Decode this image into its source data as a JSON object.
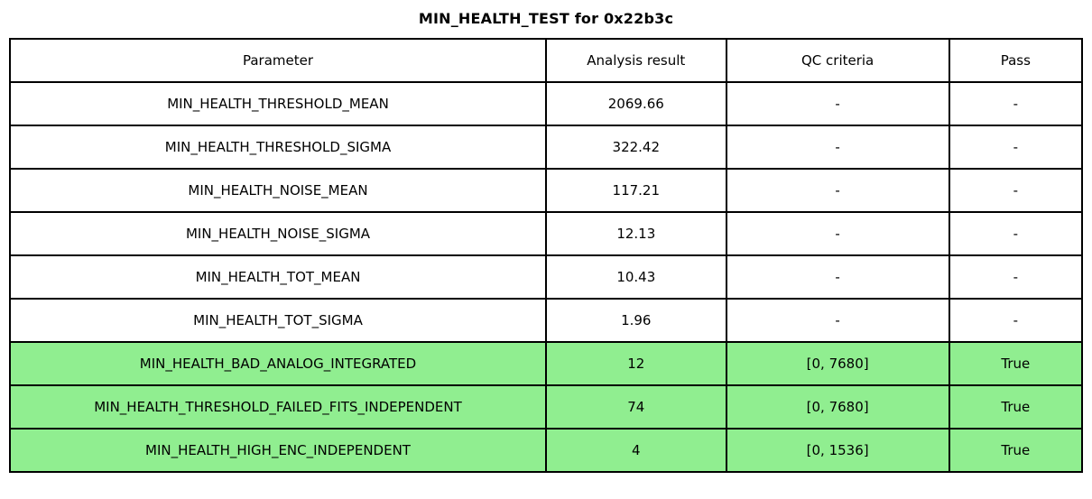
{
  "title": "MIN_HEALTH_TEST for 0x22b3c",
  "table": {
    "headers": [
      "Parameter",
      "Analysis result",
      "QC criteria",
      "Pass"
    ],
    "rows": [
      {
        "parameter": "MIN_HEALTH_THRESHOLD_MEAN",
        "analysis_result": "2069.66",
        "qc_criteria": "-",
        "pass": "-",
        "highlight": false
      },
      {
        "parameter": "MIN_HEALTH_THRESHOLD_SIGMA",
        "analysis_result": "322.42",
        "qc_criteria": "-",
        "pass": "-",
        "highlight": false
      },
      {
        "parameter": "MIN_HEALTH_NOISE_MEAN",
        "analysis_result": "117.21",
        "qc_criteria": "-",
        "pass": "-",
        "highlight": false
      },
      {
        "parameter": "MIN_HEALTH_NOISE_SIGMA",
        "analysis_result": "12.13",
        "qc_criteria": "-",
        "pass": "-",
        "highlight": false
      },
      {
        "parameter": "MIN_HEALTH_TOT_MEAN",
        "analysis_result": "10.43",
        "qc_criteria": "-",
        "pass": "-",
        "highlight": false
      },
      {
        "parameter": "MIN_HEALTH_TOT_SIGMA",
        "analysis_result": "1.96",
        "qc_criteria": "-",
        "pass": "-",
        "highlight": false
      },
      {
        "parameter": "MIN_HEALTH_BAD_ANALOG_INTEGRATED",
        "analysis_result": "12",
        "qc_criteria": "[0, 7680]",
        "pass": "True",
        "highlight": true
      },
      {
        "parameter": "MIN_HEALTH_THRESHOLD_FAILED_FITS_INDEPENDENT",
        "analysis_result": "74",
        "qc_criteria": "[0, 7680]",
        "pass": "True",
        "highlight": true
      },
      {
        "parameter": "MIN_HEALTH_HIGH_ENC_INDEPENDENT",
        "analysis_result": "4",
        "qc_criteria": "[0, 1536]",
        "pass": "True",
        "highlight": true
      }
    ]
  },
  "colors": {
    "pass_row_background": "#90ee90",
    "border": "#000000",
    "text": "#000000",
    "page_background": "#ffffff"
  },
  "chart_data": {
    "type": "table",
    "title": "MIN_HEALTH_TEST for 0x22b3c",
    "columns": [
      "Parameter",
      "Analysis result",
      "QC criteria",
      "Pass"
    ],
    "rows": [
      [
        "MIN_HEALTH_THRESHOLD_MEAN",
        "2069.66",
        "-",
        "-"
      ],
      [
        "MIN_HEALTH_THRESHOLD_SIGMA",
        "322.42",
        "-",
        "-"
      ],
      [
        "MIN_HEALTH_NOISE_MEAN",
        "117.21",
        "-",
        "-"
      ],
      [
        "MIN_HEALTH_NOISE_SIGMA",
        "12.13",
        "-",
        "-"
      ],
      [
        "MIN_HEALTH_TOT_MEAN",
        "10.43",
        "-",
        "-"
      ],
      [
        "MIN_HEALTH_TOT_SIGMA",
        "1.96",
        "-",
        "-"
      ],
      [
        "MIN_HEALTH_BAD_ANALOG_INTEGRATED",
        "12",
        "[0, 7680]",
        "True"
      ],
      [
        "MIN_HEALTH_THRESHOLD_FAILED_FITS_INDEPENDENT",
        "74",
        "[0, 7680]",
        "True"
      ],
      [
        "MIN_HEALTH_HIGH_ENC_INDEPENDENT",
        "4",
        "[0, 1536]",
        "True"
      ]
    ],
    "highlighted_rows": [
      6,
      7,
      8
    ],
    "highlight_color": "#90ee90"
  }
}
